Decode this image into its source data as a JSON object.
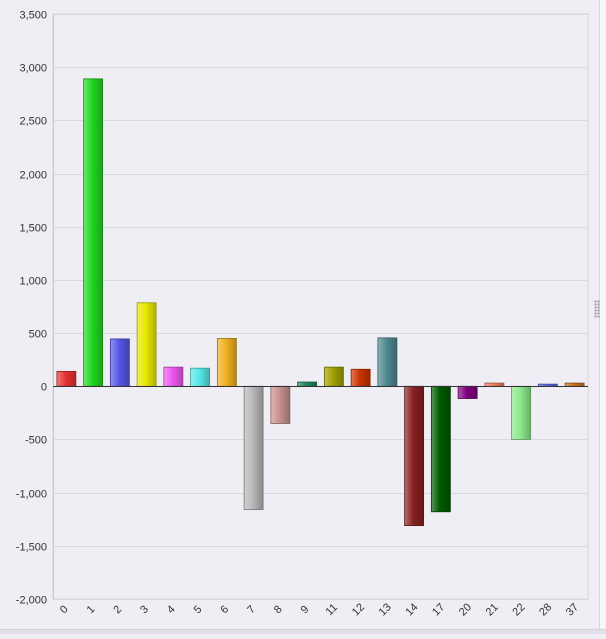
{
  "chart_data": {
    "type": "bar",
    "title": "",
    "xlabel": "",
    "ylabel": "",
    "ylim": [
      -2000,
      3500
    ],
    "y_tick_step": 500,
    "y_tick_labels": [
      "-2,000",
      "-1,500",
      "-1,000",
      "-500",
      "0",
      "500",
      "1,000",
      "1,500",
      "2,000",
      "2,500",
      "3,000",
      "3,500"
    ],
    "grid": "horizontal",
    "legend": "none",
    "categories": [
      "0",
      "1",
      "2",
      "3",
      "4",
      "5",
      "6",
      "7",
      "8",
      "9",
      "11",
      "12",
      "13",
      "14",
      "17",
      "20",
      "21",
      "22",
      "28",
      "37"
    ],
    "values": [
      140,
      2890,
      445,
      785,
      180,
      170,
      450,
      -1160,
      -350,
      40,
      180,
      160,
      455,
      -1310,
      -1180,
      -115,
      30,
      -500,
      20,
      30
    ],
    "colors": [
      "#e63232",
      "#22d622",
      "#5656e8",
      "#e8e800",
      "#ee56ee",
      "#56e8e8",
      "#f0b020",
      "#b8b8b8",
      "#c89090",
      "#208860",
      "#a0a000",
      "#cc3300",
      "#508890",
      "#882020",
      "#005a00",
      "#800080",
      "#f08060",
      "#8ce88c",
      "#5a6ae6",
      "#d07020"
    ]
  }
}
